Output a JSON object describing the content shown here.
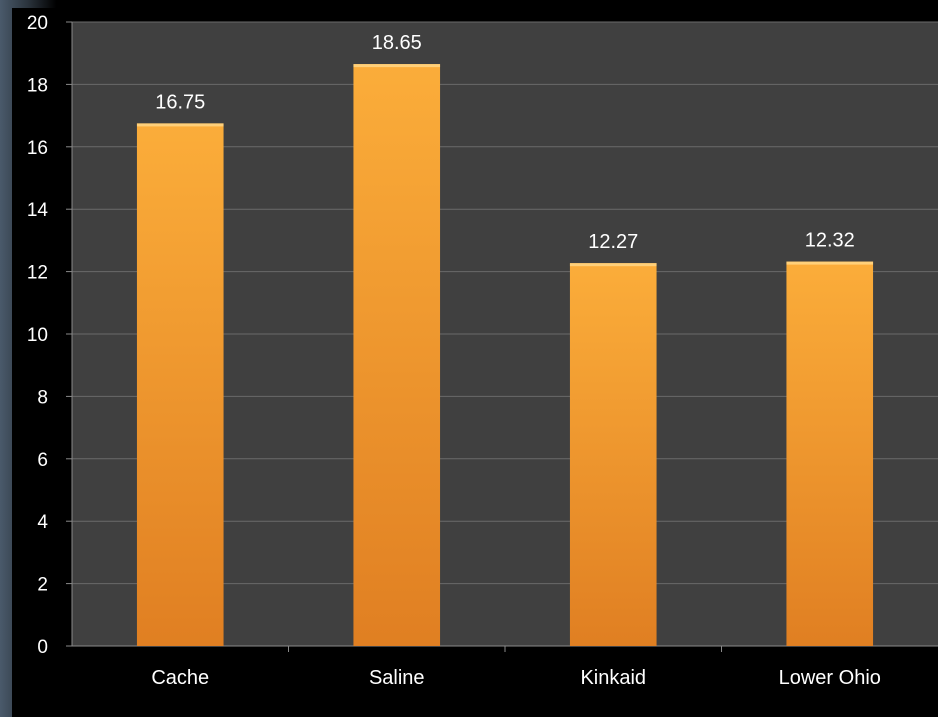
{
  "chart_data": {
    "type": "bar",
    "categories": [
      "Cache",
      "Saline",
      "Kinkaid",
      "Lower Ohio"
    ],
    "values": [
      16.75,
      18.65,
      12.27,
      12.32
    ],
    "data_labels": [
      "16.75",
      "18.65",
      "12.27",
      "12.32"
    ],
    "title": "",
    "xlabel": "",
    "ylabel": "",
    "ylim": [
      0,
      20
    ],
    "yticks": [
      "0",
      "2",
      "4",
      "6",
      "8",
      "10",
      "12",
      "14",
      "16",
      "18",
      "20"
    ],
    "grid": true,
    "legend": "none",
    "colors": {
      "bar_top": "#fbad3a",
      "bar_bottom": "#e07f22",
      "plot_background": "#404040",
      "gridline": "#6a6a6a",
      "text": "#ffffff"
    }
  }
}
